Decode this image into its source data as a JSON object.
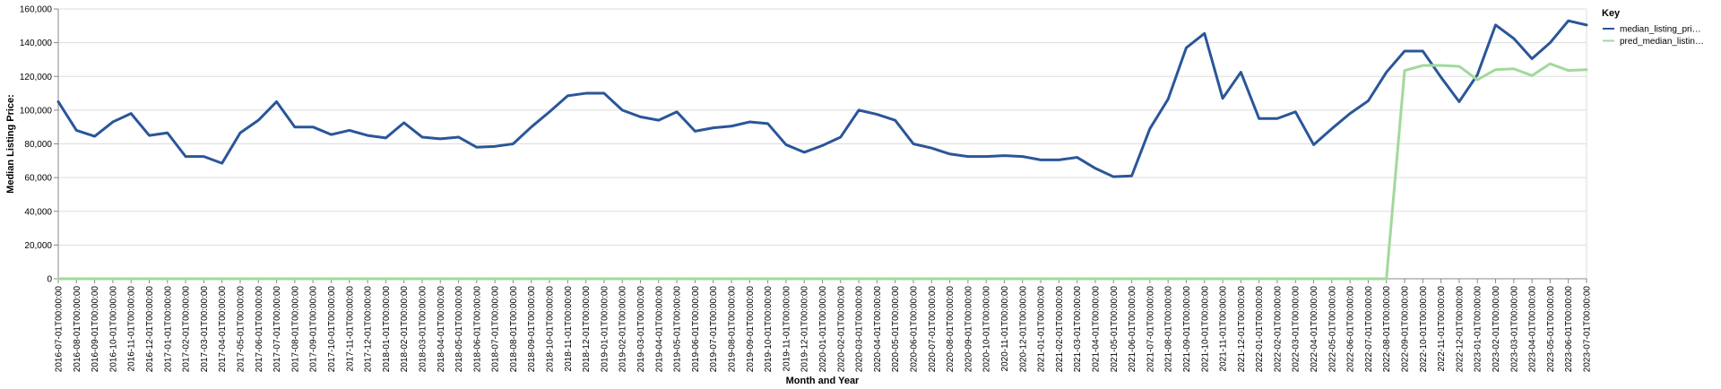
{
  "chart_data": {
    "type": "line",
    "xlabel": "Month and Year",
    "ylabel": "Median Listing Price:",
    "ylim": [
      0,
      160000
    ],
    "yticks": [
      "0",
      "20,000",
      "40,000",
      "60,000",
      "80,000",
      "100,000",
      "120,000",
      "140,000",
      "160,000"
    ],
    "grid": true,
    "legend": {
      "title": "Key",
      "placement": "right"
    },
    "x": [
      "2016-07-01T00:00:00",
      "2016-08-01T00:00:00",
      "2016-09-01T00:00:00",
      "2016-10-01T00:00:00",
      "2016-11-01T00:00:00",
      "2016-12-01T00:00:00",
      "2017-01-01T00:00:00",
      "2017-02-01T00:00:00",
      "2017-03-01T00:00:00",
      "2017-04-01T00:00:00",
      "2017-05-01T00:00:00",
      "2017-06-01T00:00:00",
      "2017-07-01T00:00:00",
      "2017-08-01T00:00:00",
      "2017-09-01T00:00:00",
      "2017-10-01T00:00:00",
      "2017-11-01T00:00:00",
      "2017-12-01T00:00:00",
      "2018-01-01T00:00:00",
      "2018-02-01T00:00:00",
      "2018-03-01T00:00:00",
      "2018-04-01T00:00:00",
      "2018-05-01T00:00:00",
      "2018-06-01T00:00:00",
      "2018-07-01T00:00:00",
      "2018-08-01T00:00:00",
      "2018-09-01T00:00:00",
      "2018-10-01T00:00:00",
      "2018-11-01T00:00:00",
      "2018-12-01T00:00:00",
      "2019-01-01T00:00:00",
      "2019-02-01T00:00:00",
      "2019-03-01T00:00:00",
      "2019-04-01T00:00:00",
      "2019-05-01T00:00:00",
      "2019-06-01T00:00:00",
      "2019-07-01T00:00:00",
      "2019-08-01T00:00:00",
      "2019-09-01T00:00:00",
      "2019-10-01T00:00:00",
      "2019-11-01T00:00:00",
      "2019-12-01T00:00:00",
      "2020-01-01T00:00:00",
      "2020-02-01T00:00:00",
      "2020-03-01T00:00:00",
      "2020-04-01T00:00:00",
      "2020-05-01T00:00:00",
      "2020-06-01T00:00:00",
      "2020-07-01T00:00:00",
      "2020-08-01T00:00:00",
      "2020-09-01T00:00:00",
      "2020-10-01T00:00:00",
      "2020-11-01T00:00:00",
      "2020-12-01T00:00:00",
      "2021-01-01T00:00:00",
      "2021-02-01T00:00:00",
      "2021-03-01T00:00:00",
      "2021-04-01T00:00:00",
      "2021-05-01T00:00:00",
      "2021-06-01T00:00:00",
      "2021-07-01T00:00:00",
      "2021-08-01T00:00:00",
      "2021-09-01T00:00:00",
      "2021-10-01T00:00:00",
      "2021-11-01T00:00:00",
      "2021-12-01T00:00:00",
      "2022-01-01T00:00:00",
      "2022-02-01T00:00:00",
      "2022-03-01T00:00:00",
      "2022-04-01T00:00:00",
      "2022-05-01T00:00:00",
      "2022-06-01T00:00:00",
      "2022-07-01T00:00:00",
      "2022-08-01T00:00:00",
      "2022-09-01T00:00:00",
      "2022-10-01T00:00:00",
      "2022-11-01T00:00:00",
      "2022-12-01T00:00:00",
      "2023-01-01T00:00:00",
      "2023-02-01T00:00:00",
      "2023-03-01T00:00:00",
      "2023-04-01T00:00:00",
      "2023-05-01T00:00:00",
      "2023-06-01T00:00:00",
      "2023-07-01T00:00:00"
    ],
    "series": [
      {
        "name": "median_listing_pri…",
        "color": "#2a5699",
        "values": [
          105000,
          88000,
          84500,
          93000,
          98000,
          85000,
          86500,
          72500,
          72500,
          68500,
          86500,
          94000,
          105000,
          90000,
          90000,
          85500,
          88000,
          85000,
          83500,
          92500,
          84000,
          83000,
          84000,
          78000,
          78500,
          80000,
          90000,
          99000,
          108500,
          110000,
          110000,
          100000,
          96000,
          94000,
          99000,
          87500,
          89500,
          90500,
          93000,
          92000,
          79500,
          75000,
          79000,
          84000,
          100000,
          97500,
          94000,
          80000,
          77500,
          74000,
          72500,
          72500,
          73000,
          72500,
          70500,
          70500,
          72000,
          65500,
          60500,
          61000,
          89000,
          106500,
          137000,
          145500,
          107000,
          122500,
          95000,
          95000,
          99000,
          79500,
          89000,
          98000,
          105500,
          122500,
          135000,
          135000,
          119500,
          105000,
          121000,
          150500,
          142500,
          130500,
          140000,
          153000,
          150500
        ]
      },
      {
        "name": "pred_median_listin…",
        "color": "#a1d99b",
        "values": [
          0,
          0,
          0,
          0,
          0,
          0,
          0,
          0,
          0,
          0,
          0,
          0,
          0,
          0,
          0,
          0,
          0,
          0,
          0,
          0,
          0,
          0,
          0,
          0,
          0,
          0,
          0,
          0,
          0,
          0,
          0,
          0,
          0,
          0,
          0,
          0,
          0,
          0,
          0,
          0,
          0,
          0,
          0,
          0,
          0,
          0,
          0,
          0,
          0,
          0,
          0,
          0,
          0,
          0,
          0,
          0,
          0,
          0,
          0,
          0,
          0,
          0,
          0,
          0,
          0,
          0,
          0,
          0,
          0,
          0,
          0,
          0,
          0,
          0,
          123500,
          126500,
          126500,
          126000,
          118000,
          124000,
          124500,
          120500,
          127500,
          123500,
          124000
        ]
      }
    ]
  }
}
